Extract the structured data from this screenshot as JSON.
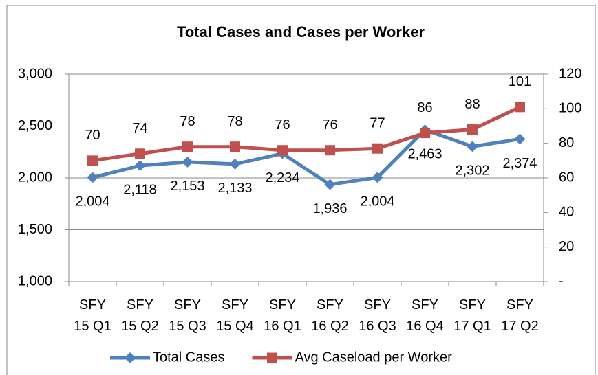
{
  "chart_data": {
    "type": "line",
    "title": "Total Cases and Cases per Worker",
    "categories": [
      "SFY 15 Q1",
      "SFY 15 Q2",
      "SFY 15 Q3",
      "SFY 15 Q4",
      "SFY 16 Q1",
      "SFY 16 Q2",
      "SFY 16 Q3",
      "SFY 16 Q4",
      "SFY 17 Q1",
      "SFY 17 Q2"
    ],
    "series": [
      {
        "name": "Total Cases",
        "color": "#4f81bd",
        "marker": "diamond",
        "values": [
          2004,
          2118,
          2153,
          2133,
          2234,
          1936,
          2004,
          2463,
          2302,
          2374
        ],
        "value_labels": [
          "2,004",
          "2,118",
          "2,153",
          "2,133",
          "2,234",
          "1,936",
          "2,004",
          "2,463",
          "2,302",
          "2,374"
        ]
      },
      {
        "name": "Avg Caseload per Worker",
        "color": "#c0504d",
        "marker": "square",
        "axis": "y2",
        "values": [
          70,
          74,
          78,
          78,
          76,
          76,
          77,
          86,
          88,
          101
        ]
      }
    ],
    "ylim": [
      1000,
      3000
    ],
    "yticks": [
      {
        "value": 1000,
        "label": "1,000"
      },
      {
        "value": 1500,
        "label": "1,500"
      },
      {
        "value": 2000,
        "label": "2,000"
      },
      {
        "value": 2500,
        "label": "2,500"
      },
      {
        "value": 3000,
        "label": "3,000"
      }
    ],
    "y2lim": [
      0,
      120
    ],
    "y2ticks": [
      {
        "value": 0,
        "label": "-"
      },
      20,
      40,
      60,
      80,
      100,
      120
    ],
    "grid": true,
    "legend": "bottom"
  }
}
